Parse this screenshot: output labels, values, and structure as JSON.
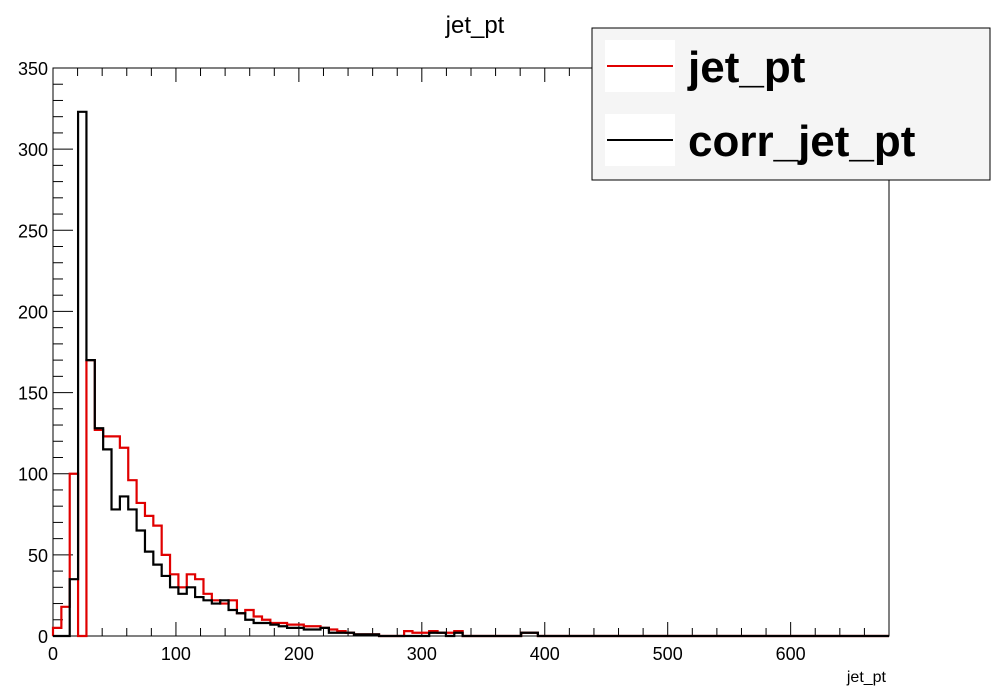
{
  "chart_data": {
    "type": "histogram",
    "title": "jet_pt",
    "xlabel": "jet_pt",
    "ylabel": "",
    "xlim": [
      0,
      680
    ],
    "ylim": [
      0,
      350
    ],
    "bin_width": 6.8,
    "x_ticks": [
      0,
      100,
      200,
      300,
      400,
      500,
      600
    ],
    "y_ticks": [
      0,
      50,
      100,
      150,
      200,
      250,
      300,
      350
    ],
    "grid": false,
    "legend_position": "top-right",
    "series": [
      {
        "name": "jet_pt",
        "color": "#e00000",
        "values": [
          5,
          18,
          100,
          0,
          170,
          127,
          123,
          123,
          116,
          96,
          82,
          74,
          68,
          50,
          38,
          30,
          38,
          35,
          26,
          22,
          20,
          22,
          14,
          16,
          12,
          10,
          8,
          8,
          7,
          7,
          6,
          6,
          5,
          4,
          3,
          2,
          1,
          1,
          1,
          0,
          0,
          0,
          3,
          2,
          2,
          3,
          2,
          2,
          3,
          0,
          0,
          0,
          0,
          0,
          0,
          0,
          2,
          2,
          0,
          0,
          0,
          0,
          0,
          0,
          0,
          0,
          0,
          0,
          0,
          0,
          0,
          0,
          0,
          0,
          0,
          0,
          0,
          0,
          0,
          0,
          0,
          0,
          0,
          0,
          0,
          0,
          0,
          0,
          0,
          0,
          0,
          0,
          0,
          0,
          0,
          0,
          0,
          0,
          0,
          0
        ]
      },
      {
        "name": "corr_jet_pt",
        "color": "#000000",
        "values": [
          0,
          0,
          35,
          323,
          170,
          128,
          115,
          78,
          86,
          78,
          65,
          52,
          44,
          37,
          30,
          26,
          30,
          24,
          22,
          20,
          22,
          16,
          14,
          10,
          8,
          8,
          7,
          6,
          5,
          5,
          4,
          4,
          5,
          2,
          2,
          2,
          1,
          1,
          1,
          0,
          0,
          0,
          0,
          0,
          0,
          2,
          2,
          0,
          2,
          0,
          0,
          0,
          0,
          0,
          0,
          0,
          2,
          2,
          0,
          0,
          0,
          0,
          0,
          0,
          0,
          0,
          0,
          0,
          0,
          0,
          0,
          0,
          0,
          0,
          0,
          0,
          0,
          0,
          0,
          0,
          0,
          0,
          0,
          0,
          0,
          0,
          0,
          0,
          0,
          0,
          0,
          0,
          0,
          0,
          0,
          0,
          0,
          0,
          0,
          0
        ]
      }
    ]
  }
}
